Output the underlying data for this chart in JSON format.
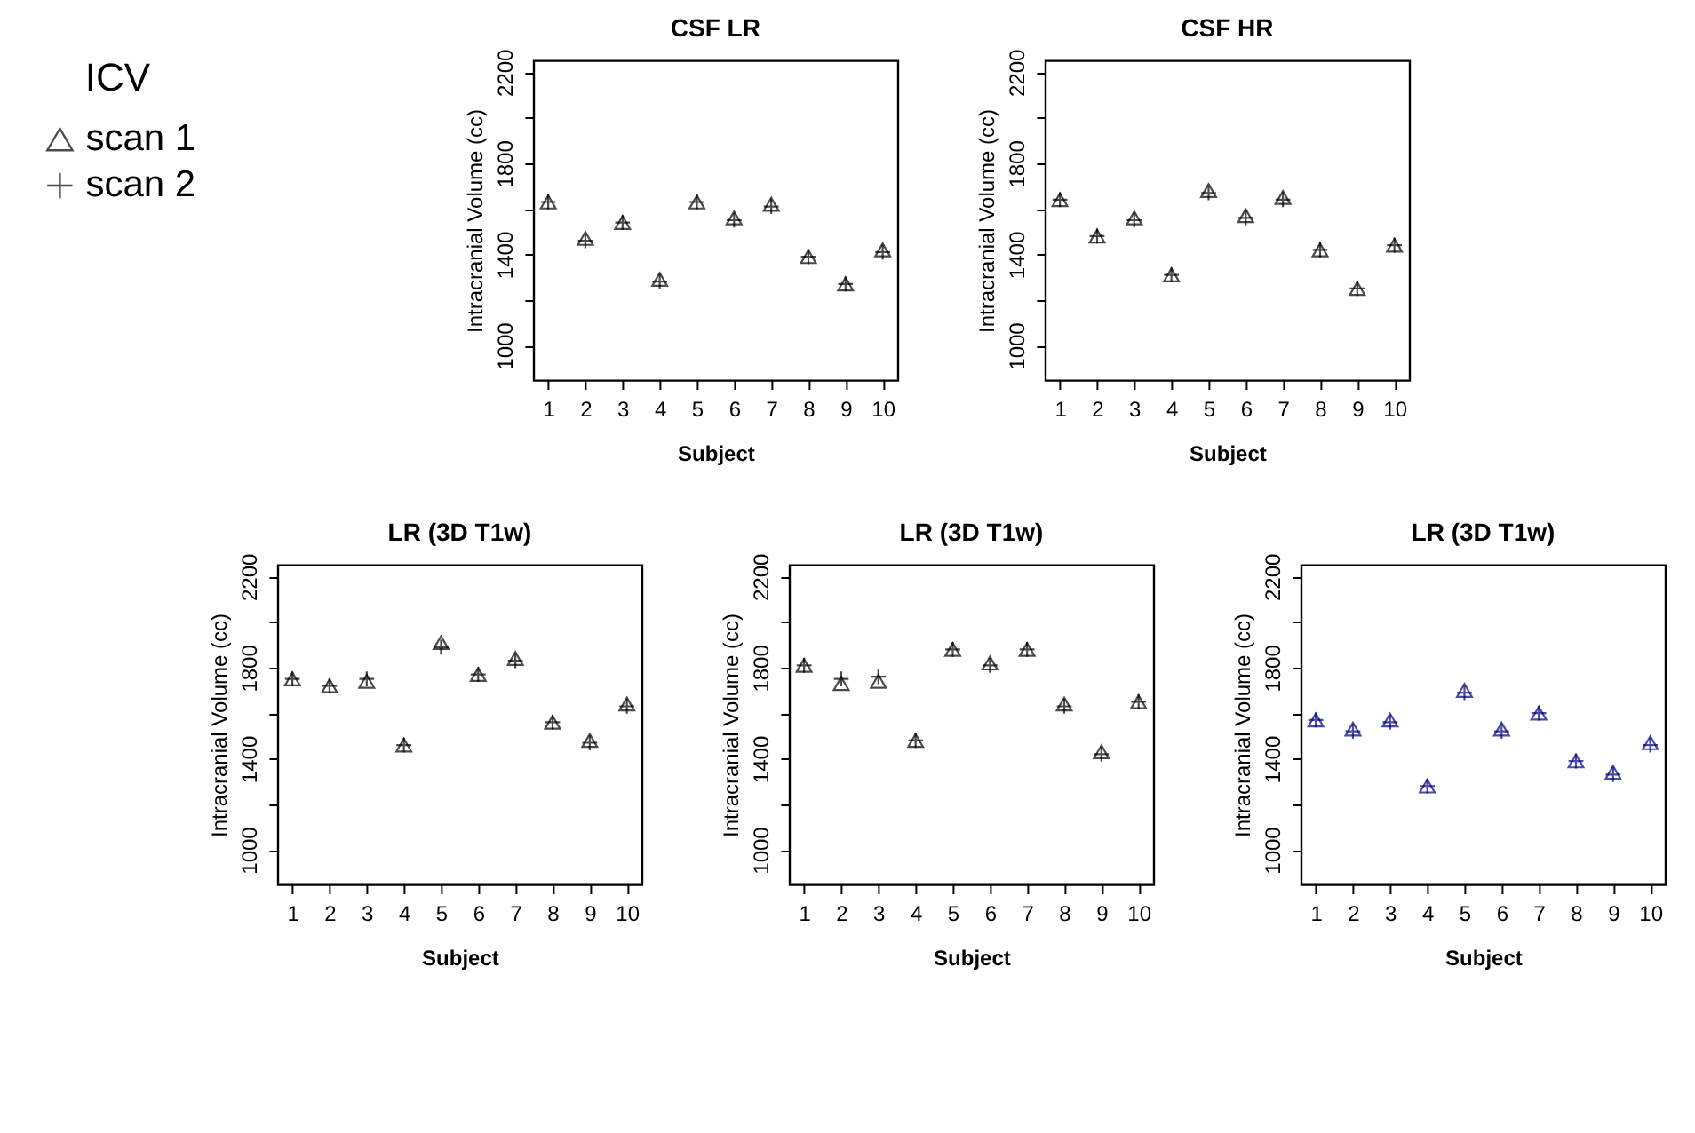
{
  "chart_data": [
    {
      "type": "scatter",
      "title": "CSF LR",
      "xlabel": "Subject",
      "ylabel": "Intracranial Volume (cc)",
      "legend": "left",
      "legend_title": "ICV",
      "grid": false,
      "categories": [
        "1",
        "2",
        "3",
        "4",
        "5",
        "6",
        "7",
        "8",
        "9",
        "10"
      ],
      "ylim": [
        848,
        2252
      ],
      "yticks": [
        1000,
        {
          "value": 1200,
          "label": null
        },
        1400,
        {
          "value": 1600,
          "label": null
        },
        1800,
        {
          "value": 2000,
          "label": null
        },
        2200
      ],
      "series": [
        {
          "name": "scan 1",
          "color": "#000000",
          "marker": "triangle",
          "values": [
            1630,
            1470,
            1540,
            1290,
            1630,
            1560,
            1620,
            1390,
            1270,
            1420
          ]
        },
        {
          "name": "scan 2",
          "color": "#000000",
          "marker": "cross",
          "values": [
            1630,
            1460,
            1540,
            1280,
            1630,
            1550,
            1610,
            1390,
            1270,
            1410
          ]
        }
      ]
    },
    {
      "type": "scatter",
      "title": "CSF HR",
      "xlabel": "Subject",
      "ylabel": "Intracranial Volume (cc)",
      "grid": false,
      "categories": [
        "1",
        "2",
        "3",
        "4",
        "5",
        "6",
        "7",
        "8",
        "9",
        "10"
      ],
      "ylim": [
        848,
        2252
      ],
      "yticks": [
        1000,
        {
          "value": 1200,
          "label": null
        },
        1400,
        {
          "value": 1600,
          "label": null
        },
        1800,
        {
          "value": 2000,
          "label": null
        },
        2200
      ],
      "series": [
        {
          "color": "#000000",
          "marker": "triangle",
          "values": [
            1640,
            1480,
            1560,
            1310,
            1680,
            1570,
            1650,
            1420,
            1250,
            1440
          ]
        },
        {
          "color": "#000000",
          "marker": "cross",
          "values": [
            1640,
            1480,
            1550,
            1310,
            1670,
            1560,
            1640,
            1420,
            1250,
            1440
          ]
        }
      ]
    },
    {
      "type": "scatter",
      "title": "LR (3D T1w)",
      "xlabel": "Subject",
      "ylabel": "Intracranial Volume (cc)",
      "grid": false,
      "categories": [
        "1",
        "2",
        "3",
        "4",
        "5",
        "6",
        "7",
        "8",
        "9",
        "10"
      ],
      "ylim": [
        848,
        2252
      ],
      "yticks": [
        1000,
        {
          "value": 1200,
          "label": null
        },
        1400,
        {
          "value": 1600,
          "label": null
        },
        1800,
        {
          "value": 2000,
          "label": null
        },
        2200
      ],
      "series": [
        {
          "color": "#000000",
          "marker": "triangle",
          "values": [
            1750,
            1720,
            1740,
            1460,
            1910,
            1770,
            1840,
            1560,
            1480,
            1640
          ]
        },
        {
          "color": "#000000",
          "marker": "cross",
          "values": [
            1750,
            1720,
            1750,
            1460,
            1890,
            1770,
            1830,
            1560,
            1470,
            1630
          ]
        }
      ]
    },
    {
      "type": "scatter",
      "title": "LR (3D T1w)",
      "xlabel": "Subject",
      "ylabel": "Intracranial Volume (cc)",
      "grid": false,
      "categories": [
        "1",
        "2",
        "3",
        "4",
        "5",
        "6",
        "7",
        "8",
        "9",
        "10"
      ],
      "ylim": [
        848,
        2252
      ],
      "yticks": [
        1000,
        {
          "value": 1200,
          "label": null
        },
        1400,
        {
          "value": 1600,
          "label": null
        },
        1800,
        {
          "value": 2000,
          "label": null
        },
        2200
      ],
      "series": [
        {
          "color": "#000000",
          "marker": "triangle",
          "values": [
            1810,
            1730,
            1740,
            1480,
            1880,
            1820,
            1880,
            1640,
            1430,
            1650
          ]
        },
        {
          "color": "#000000",
          "marker": "cross",
          "values": [
            1810,
            1750,
            1760,
            1480,
            1880,
            1810,
            1880,
            1630,
            1420,
            1650
          ]
        }
      ]
    },
    {
      "type": "scatter",
      "title": "LR (3D T1w)",
      "xlabel": "Subject",
      "ylabel": "Intracranial Volume (cc)",
      "grid": false,
      "categories": [
        "1",
        "2",
        "3",
        "4",
        "5",
        "6",
        "7",
        "8",
        "9",
        "10"
      ],
      "ylim": [
        848,
        2252
      ],
      "yticks": [
        1000,
        {
          "value": 1200,
          "label": null
        },
        1400,
        {
          "value": 1600,
          "label": null
        },
        1800,
        {
          "value": 2000,
          "label": null
        },
        2200
      ],
      "series": [
        {
          "color": "#00007f",
          "marker": "triangle",
          "values": [
            1570,
            1530,
            1570,
            1280,
            1700,
            1530,
            1600,
            1390,
            1340,
            1470
          ]
        },
        {
          "color": "#00007f",
          "marker": "cross",
          "values": [
            1570,
            1520,
            1560,
            1280,
            1690,
            1520,
            1600,
            1390,
            1330,
            1460
          ]
        }
      ]
    }
  ]
}
